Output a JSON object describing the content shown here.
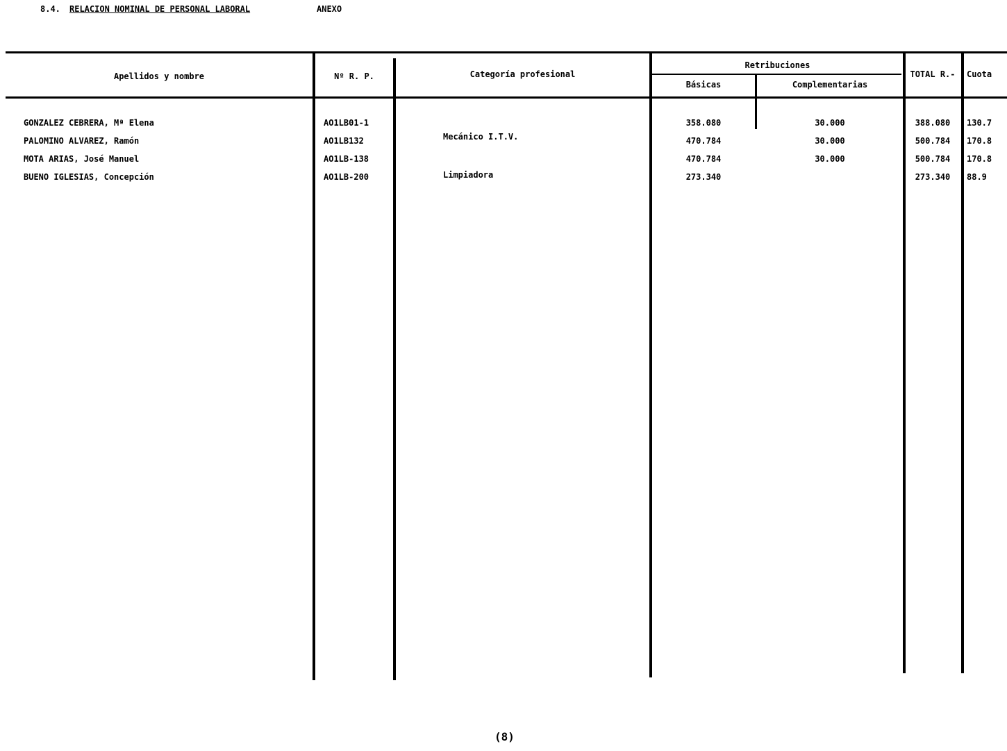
{
  "title": {
    "number": "8.4.",
    "text": "RELACION NOMINAL DE PERSONAL LABORAL",
    "code": "ANEXO"
  },
  "headers": {
    "name": "Apellidos y nombre",
    "nrp": "Nº R. P.",
    "category": "Categoría profesional",
    "retribuciones": "Retribuciones",
    "basicas": "Básicas",
    "complementarias": "Complementarias",
    "total": "TOTAL R.-",
    "cuota": "Cuota"
  },
  "rows": [
    {
      "name": "GONZALEZ CEBRERA, Mª Elena",
      "nrp": "AO1LB01-1",
      "category": "",
      "basicas": "358.080",
      "complementarias": "30.000",
      "total": "388.080",
      "cuota": "130.7"
    },
    {
      "name": "PALOMINO ALVAREZ, Ramón",
      "nrp": "AO1LB132",
      "category": "Mecánico I.T.V.",
      "basicas": "470.784",
      "complementarias": "30.000",
      "total": "500.784",
      "cuota": "170.8"
    },
    {
      "name": "MOTA ARIAS, José Manuel",
      "nrp": "AO1LB-138",
      "category": "",
      "basicas": "470.784",
      "complementarias": "30.000",
      "total": "500.784",
      "cuota": "170.8"
    },
    {
      "name": "BUENO IGLESIAS, Concepción",
      "nrp": "AO1LB-200",
      "category": "Limpiadora",
      "basicas": "273.340",
      "complementarias": "",
      "total": "273.340",
      "cuota": "88.9"
    }
  ],
  "footer": {
    "page": "(8)"
  }
}
